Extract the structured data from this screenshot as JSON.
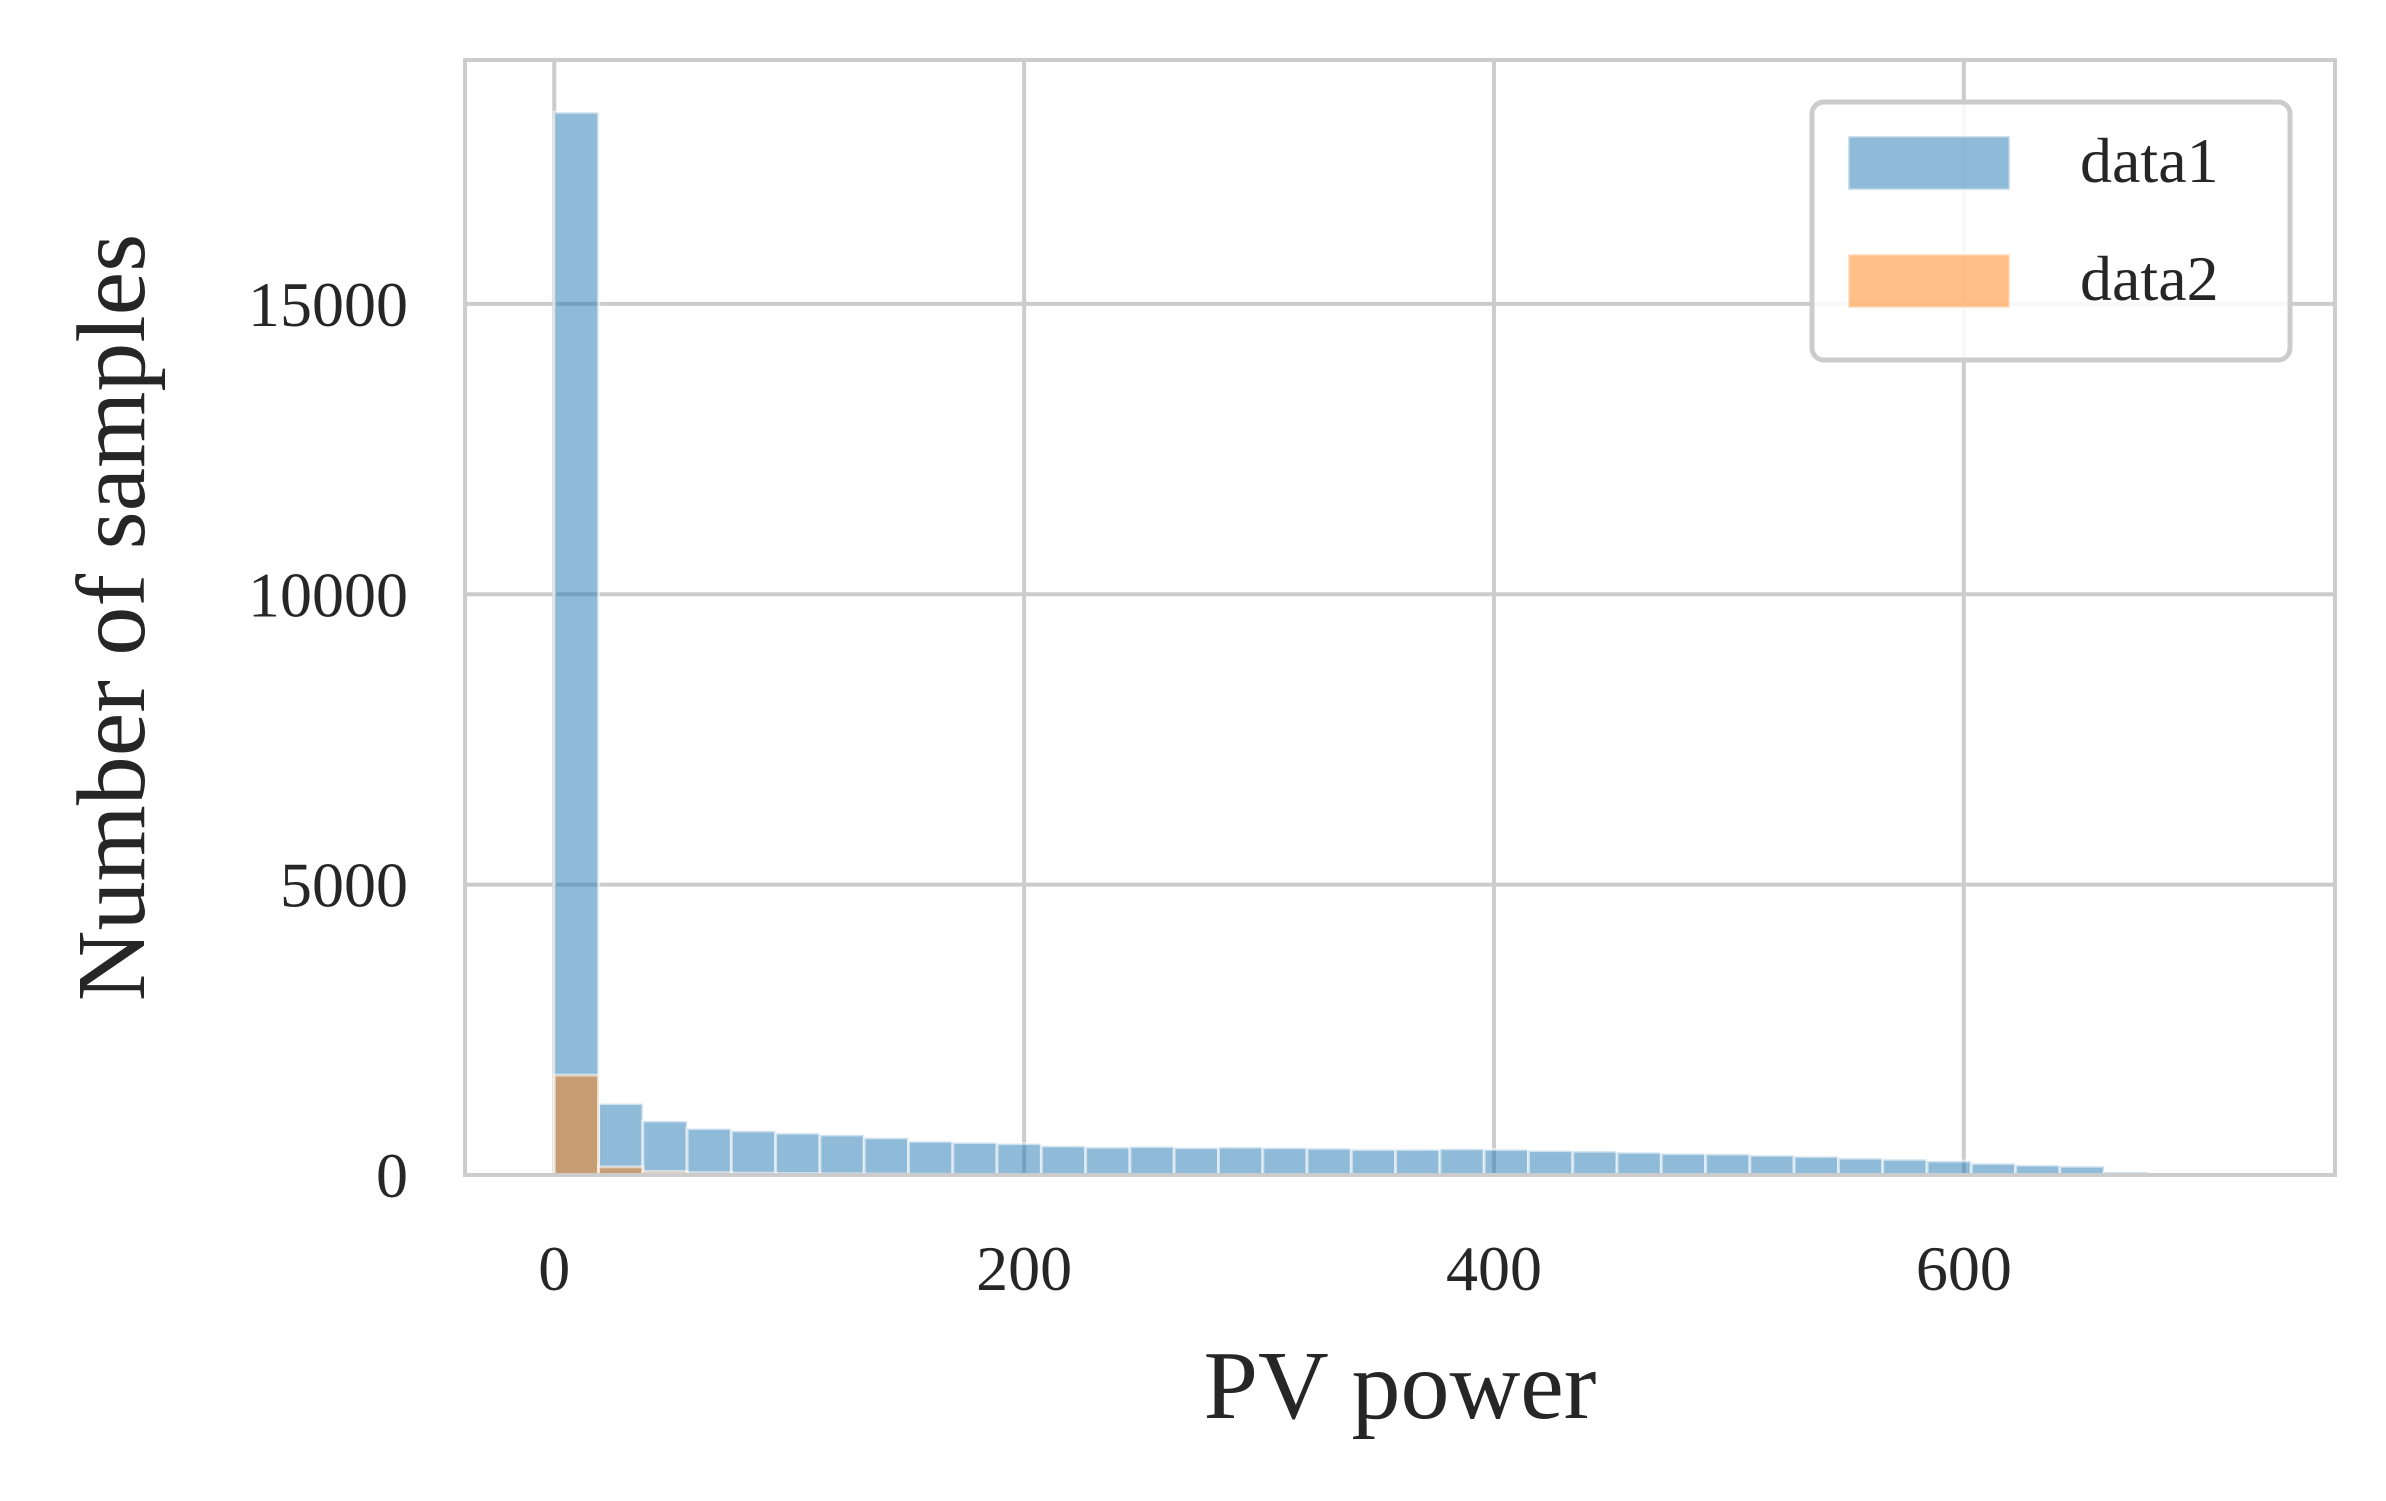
{
  "chart_data": {
    "type": "bar",
    "xlabel": "PV power",
    "ylabel": "Number of samples",
    "xlim": [
      -38,
      758
    ],
    "ylim": [
      0,
      19200
    ],
    "xticks": [
      0,
      200,
      400,
      600
    ],
    "yticks": [
      0,
      5000,
      10000,
      15000
    ],
    "grid": true,
    "legend_position": "top-right",
    "bin_start": 0,
    "bin_width": 18.85,
    "series": [
      {
        "name": "data1",
        "color": "#1f77b4",
        "opacity": 0.5,
        "values": [
          18300,
          1230,
          930,
          800,
          760,
          720,
          690,
          640,
          580,
          560,
          540,
          500,
          480,
          490,
          470,
          480,
          470,
          460,
          440,
          440,
          450,
          440,
          420,
          410,
          390,
          370,
          360,
          340,
          320,
          290,
          270,
          240,
          200,
          170,
          150,
          50,
          20,
          10,
          5,
          0
        ]
      },
      {
        "name": "data2",
        "color": "#ff7f0e",
        "opacity": 0.5,
        "values": [
          1720,
          140,
          60,
          40,
          30,
          25,
          20,
          15,
          12,
          10,
          8,
          6,
          5,
          4,
          3,
          3,
          2,
          2,
          2,
          1,
          1,
          1,
          1,
          1,
          0,
          0,
          0,
          0,
          0,
          0,
          0,
          0,
          0,
          0,
          0,
          0,
          0,
          0,
          0,
          0
        ]
      }
    ]
  }
}
